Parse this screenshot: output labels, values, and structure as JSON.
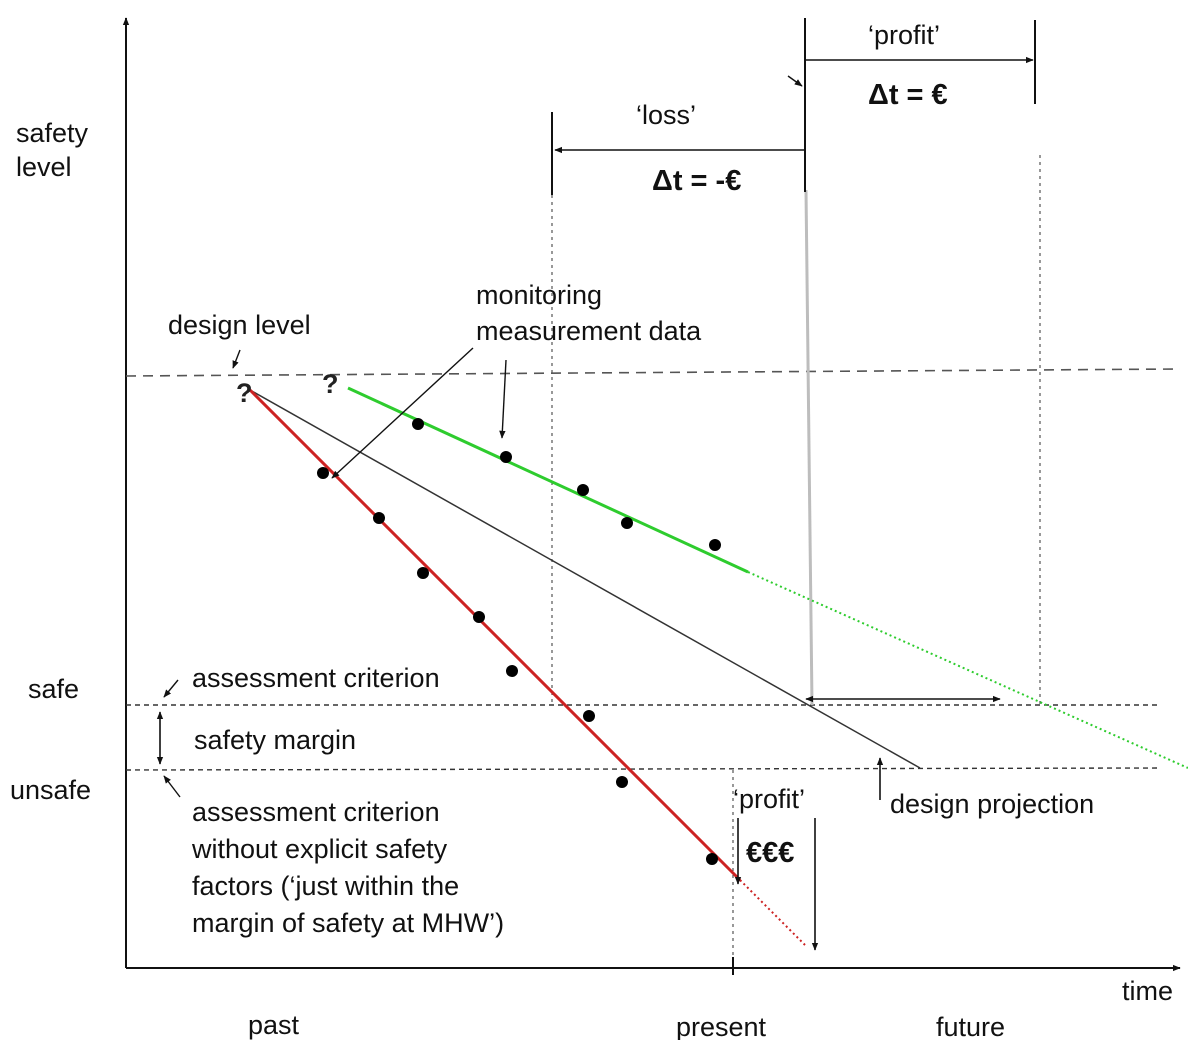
{
  "axes": {
    "y_label_line1": "safety",
    "y_label_line2": "level",
    "x_label": "time",
    "x_ticks": [
      "past",
      "present",
      "future"
    ]
  },
  "levels": {
    "safe": "safe",
    "unsafe": "unsafe"
  },
  "annotations": {
    "design_level": "design level",
    "monitoring_line1": "monitoring",
    "monitoring_line2": "measurement data",
    "assessment_criterion": "assessment criterion",
    "safety_margin": "safety margin",
    "assessment_no_factors": [
      "assessment criterion",
      "without explicit safety",
      "factors (‘just within the",
      "margin of safety at MHW’)"
    ],
    "design_projection": "design projection",
    "question_mark": "?"
  },
  "time_brackets": {
    "loss_label": "‘loss’",
    "loss_delta": "Δt = -€",
    "profit_label": "‘profit’",
    "profit_delta": "Δt = €"
  },
  "cost_box": {
    "profit_label": "‘profit’",
    "amount": "€€€"
  },
  "colors": {
    "red_line": "#cc2222",
    "green_line": "#2ecc2e",
    "design_line": "#333333",
    "axis": "#111111",
    "dashed": "#555555",
    "vertical_guide": "#bdbdbd"
  }
}
